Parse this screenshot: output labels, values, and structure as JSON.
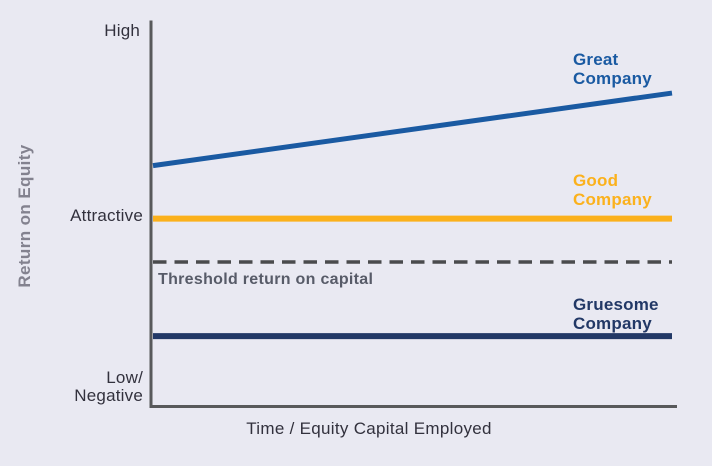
{
  "background_color": "#e9e9f2",
  "chart_data": {
    "type": "line",
    "title": "",
    "xlabel": "Time / Equity Capital Employed",
    "ylabel": "Return on Equity",
    "x_range": [
      0,
      1
    ],
    "y_range": [
      0,
      100
    ],
    "grid": false,
    "legend_position": "inline-right-of-lines",
    "axis_color": "#58595b",
    "y_tick_labels": [
      {
        "label": "High",
        "value": 97
      },
      {
        "label": "Attractive",
        "value": 49
      },
      {
        "label": "Low/\nNegative",
        "value": 5
      }
    ],
    "series": [
      {
        "name": "Great Company",
        "color": "#1a5aa2",
        "style": "solid",
        "stroke_width": 5,
        "points": [
          [
            0,
            62.6
          ],
          [
            1,
            81.5
          ]
        ]
      },
      {
        "name": "Good Company",
        "color": "#fbb11c",
        "style": "solid",
        "stroke_width": 6,
        "points": [
          [
            0,
            48.8
          ],
          [
            1,
            48.8
          ]
        ]
      },
      {
        "name": "Threshold return on capital",
        "color": "#4a4b4d",
        "style": "dashed",
        "stroke_width": 3.6,
        "points": [
          [
            0,
            37.5
          ],
          [
            1,
            37.5
          ]
        ]
      },
      {
        "name": "Gruesome Company",
        "color": "#223866",
        "style": "solid",
        "stroke_width": 6,
        "points": [
          [
            0,
            18.2
          ],
          [
            1,
            18.2
          ]
        ]
      }
    ],
    "annotations": [
      {
        "text": "Threshold return on capital",
        "color": "#575b68"
      }
    ]
  }
}
